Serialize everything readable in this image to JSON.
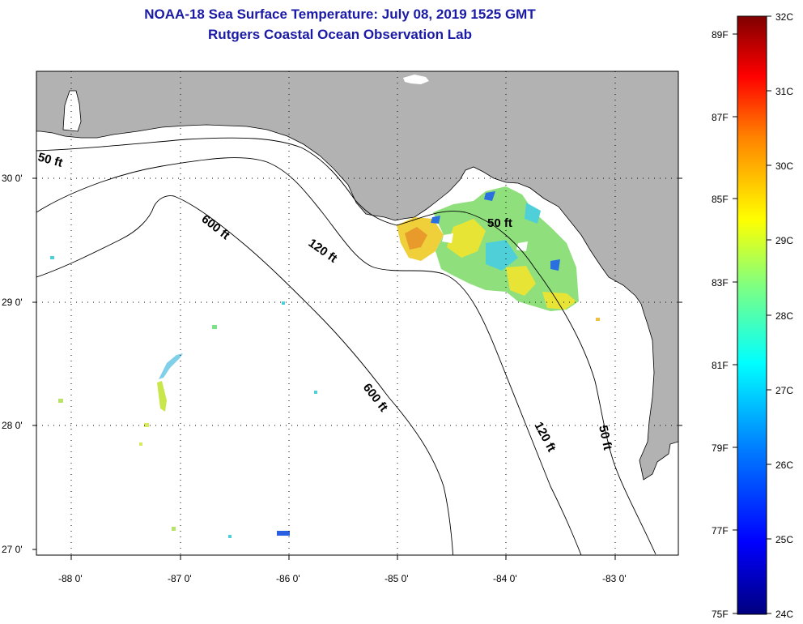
{
  "header": {
    "title": "NOAA-18 Sea Surface Temperature:  July 08, 2019 1525 GMT",
    "subtitle": "Rutgers Coastal Ocean Observation Lab"
  },
  "axes": {
    "lat_ticks": [
      "30 0'",
      "29 0'",
      "28 0'",
      "27 0'"
    ],
    "lon_ticks": [
      "-88 0'",
      "-87 0'",
      "-86 0'",
      "-85 0'",
      "-84 0'",
      "-83 0'"
    ]
  },
  "contours": {
    "c50_west": "50 ft",
    "c600_north": "600 ft",
    "c120_north": "120 ft",
    "c50_bigbend": "50 ft",
    "c600_south": "600 ft",
    "c120_south": "120 ft",
    "c50_south": "50 ft"
  },
  "colorbar": {
    "celsius": [
      "32C",
      "31C",
      "30C",
      "29C",
      "28C",
      "27C",
      "26C",
      "25C",
      "24C"
    ],
    "fahrenheit": [
      "89F",
      "87F",
      "85F",
      "83F",
      "81F",
      "79F",
      "77F",
      "75F"
    ]
  },
  "colors": {
    "land": "#b2b2b2",
    "ocean": "#ffffff",
    "title": "#1a1aa6"
  }
}
